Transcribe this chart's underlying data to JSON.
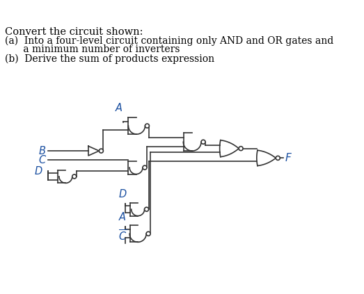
{
  "bg_color": "#ffffff",
  "text_color": "#000000",
  "label_color": "#1a4fa0",
  "wire_color": "#333333",
  "title": "Convert the circuit shown:",
  "line_a": "(a)  Into a four-level circuit containing only AND and OR gates and",
  "line_a2": "      a minimum number of inverters",
  "line_b": "(b)  Derive the sum of products expression"
}
